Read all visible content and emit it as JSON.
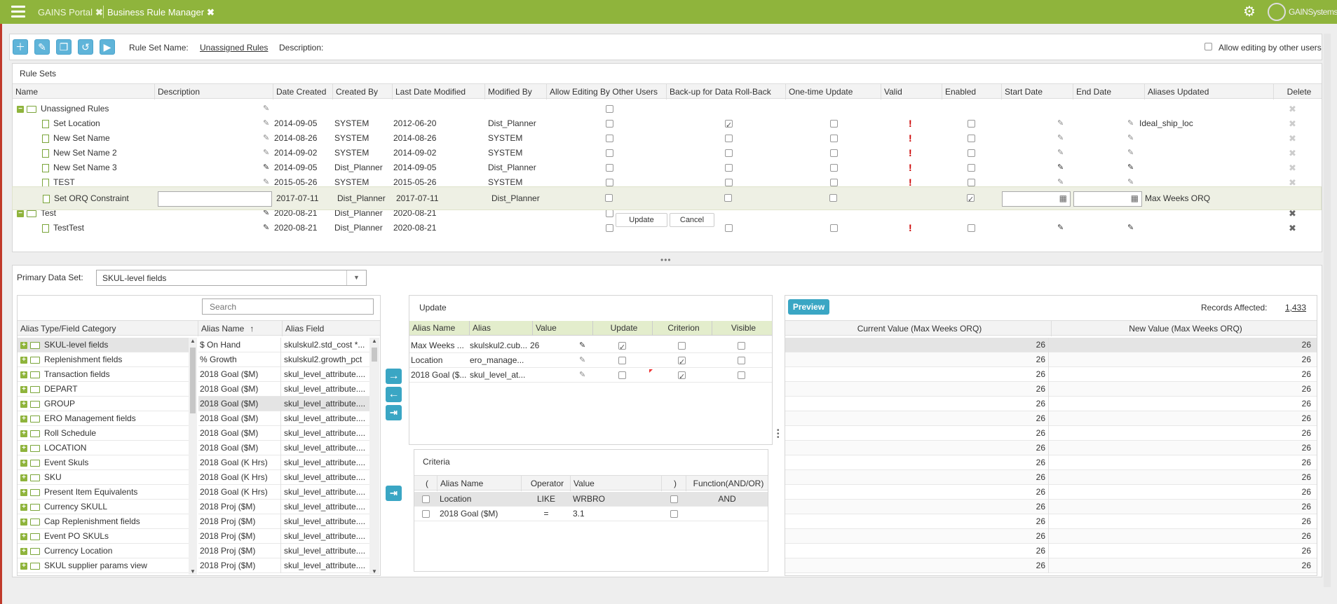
{
  "header": {
    "tabs": [
      {
        "label": "GAINS Portal"
      },
      {
        "label": "Business Rule Manager"
      }
    ],
    "logo_text": "GAINSystems"
  },
  "toolbar": {
    "rule_set_name_label": "Rule Set Name:",
    "rule_set_name_value": "Unassigned Rules",
    "description_label": "Description:",
    "allow_editing_label": "Allow editing by other users"
  },
  "rule_sets": {
    "title": "Rule Sets",
    "columns": [
      "Name",
      "Description",
      "Date Created",
      "Created By",
      "Last Date Modified",
      "Modified By",
      "Allow Editing By Other Users",
      "Back-up for Data Roll-Back",
      "One-time Update",
      "Valid",
      "Enabled",
      "Start Date",
      "End Date",
      "Aliases Updated",
      "Delete"
    ],
    "rows": [
      {
        "name": "Unassigned Rules",
        "date_created": "",
        "created_by": "",
        "last_modified": "",
        "modified_by": "",
        "aliases": ""
      },
      {
        "name": "Set Location",
        "date_created": "2014-09-05",
        "created_by": "SYSTEM",
        "last_modified": "2012-06-20",
        "modified_by": "Dist_Planner",
        "aliases": "Ideal_ship_loc"
      },
      {
        "name": "New Set Name",
        "date_created": "2014-08-26",
        "created_by": "SYSTEM",
        "last_modified": "2014-08-26",
        "modified_by": "SYSTEM",
        "aliases": ""
      },
      {
        "name": "New Set Name 2",
        "date_created": "2014-09-02",
        "created_by": "SYSTEM",
        "last_modified": "2014-09-02",
        "modified_by": "SYSTEM",
        "aliases": ""
      },
      {
        "name": "New Set Name 3",
        "date_created": "2014-09-05",
        "created_by": "Dist_Planner",
        "last_modified": "2014-09-05",
        "modified_by": "Dist_Planner",
        "aliases": ""
      },
      {
        "name": "TEST",
        "date_created": "2015-05-26",
        "created_by": "SYSTEM",
        "last_modified": "2015-05-26",
        "modified_by": "SYSTEM",
        "aliases": ""
      },
      {
        "name": "Test",
        "date_created": "2020-08-21",
        "created_by": "Dist_Planner",
        "last_modified": "2020-08-21",
        "modified_by": "",
        "aliases": ""
      },
      {
        "name": "TestTest",
        "date_created": "2020-08-21",
        "created_by": "Dist_Planner",
        "last_modified": "2020-08-21",
        "modified_by": "",
        "aliases": ""
      }
    ],
    "edit_row": {
      "name": "Set ORQ Constraint",
      "date_created": "2017-07-11",
      "created_by": "Dist_Planner",
      "last_modified": "2017-07-11",
      "modified_by": "Dist_Planner",
      "aliases": "Max Weeks ORQ",
      "update_label": "Update",
      "cancel_label": "Cancel"
    }
  },
  "primary": {
    "label": "Primary Data Set:",
    "value": "SKUL-level fields"
  },
  "alias_panel": {
    "search_placeholder": "Search",
    "col_type": "Alias Type/Field Category",
    "col_name": "Alias Name",
    "col_field": "Alias Field",
    "categories": [
      "SKUL-level fields",
      "Replenishment fields",
      "Transaction fields",
      "DEPART",
      "GROUP",
      "ERO Management fields",
      "Roll Schedule",
      "LOCATION",
      "Event Skuls",
      "SKU",
      "Present Item Equivalents",
      "Currency SKULL",
      "Cap Replenishment fields",
      "Event PO SKULs",
      "Currency Location",
      "SKUL supplier params view"
    ],
    "aliases": [
      {
        "name": "$ On Hand",
        "field": "skulskul2.std_cost *..."
      },
      {
        "name": "% Growth",
        "field": "skulskul2.growth_pct"
      },
      {
        "name": "2018 Goal ($M)",
        "field": "skul_level_attribute...."
      },
      {
        "name": "2018 Goal ($M)",
        "field": "skul_level_attribute...."
      },
      {
        "name": "2018 Goal ($M)",
        "field": "skul_level_attribute...."
      },
      {
        "name": "2018 Goal ($M)",
        "field": "skul_level_attribute...."
      },
      {
        "name": "2018 Goal ($M)",
        "field": "skul_level_attribute...."
      },
      {
        "name": "2018 Goal ($M)",
        "field": "skul_level_attribute...."
      },
      {
        "name": "2018 Goal (K Hrs)",
        "field": "skul_level_attribute...."
      },
      {
        "name": "2018 Goal (K Hrs)",
        "field": "skul_level_attribute...."
      },
      {
        "name": "2018 Goal (K Hrs)",
        "field": "skul_level_attribute...."
      },
      {
        "name": "2018 Proj ($M)",
        "field": "skul_level_attribute...."
      },
      {
        "name": "2018 Proj ($M)",
        "field": "skul_level_attribute...."
      },
      {
        "name": "2018 Proj ($M)",
        "field": "skul_level_attribute...."
      },
      {
        "name": "2018 Proj ($M)",
        "field": "skul_level_attribute...."
      },
      {
        "name": "2018 Proj ($M)",
        "field": "skul_level_attribute...."
      }
    ]
  },
  "update_panel": {
    "title": "Update",
    "columns": [
      "Alias Name",
      "Alias",
      "Value",
      "Update",
      "Criterion",
      "Visible"
    ],
    "rows": [
      {
        "alias_name": "Max Weeks ...",
        "alias": "skulskul2.cub...",
        "value": "26"
      },
      {
        "alias_name": "Location",
        "alias": "ero_manage...",
        "value": ""
      },
      {
        "alias_name": "2018 Goal ($...",
        "alias": "skul_level_at...",
        "value": ""
      }
    ]
  },
  "criteria_panel": {
    "title": "Criteria",
    "columns": [
      "(",
      "Alias Name",
      "Operator",
      "Value",
      ")",
      "Function(AND/OR)"
    ],
    "rows": [
      {
        "alias_name": "Location",
        "operator": "LIKE",
        "value": "WRBRO",
        "func": "AND"
      },
      {
        "alias_name": "2018 Goal ($M)",
        "operator": "=",
        "value": "3.1",
        "func": ""
      }
    ]
  },
  "preview_panel": {
    "button": "Preview",
    "records_label": "Records Affected:",
    "records_value": "1,433",
    "col_current": "Current Value (Max Weeks ORQ)",
    "col_new": "New Value (Max Weeks ORQ)",
    "rows": [
      "26",
      "26",
      "26",
      "26",
      "26",
      "26",
      "26",
      "26",
      "26",
      "26",
      "26",
      "26",
      "26",
      "26",
      "26",
      "26"
    ]
  }
}
